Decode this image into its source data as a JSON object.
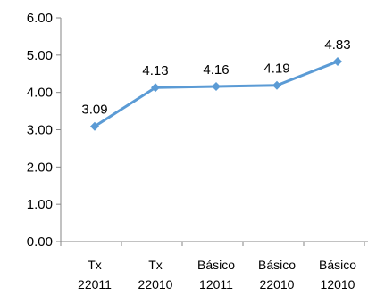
{
  "chart_data": {
    "type": "line",
    "title": "",
    "xlabel": "",
    "ylabel": "",
    "categories": [
      [
        "Tx",
        "22011"
      ],
      [
        "Tx",
        "22010"
      ],
      [
        "Básico",
        "12011"
      ],
      [
        "Básico",
        "22010"
      ],
      [
        "Básico",
        "12010"
      ]
    ],
    "series": [
      {
        "values": [
          3.09,
          4.13,
          4.16,
          4.19,
          4.83
        ],
        "labels": [
          "3.09",
          "4.13",
          "4.16",
          "4.19",
          "4.83"
        ],
        "color": "#5b9bd5",
        "marker": "diamond"
      }
    ],
    "yticks": [
      "0.00",
      "1.00",
      "2.00",
      "3.00",
      "4.00",
      "5.00",
      "6.00"
    ],
    "ylim": [
      0,
      6
    ],
    "grid": false,
    "legend": "none",
    "axis_color": "#868686"
  }
}
